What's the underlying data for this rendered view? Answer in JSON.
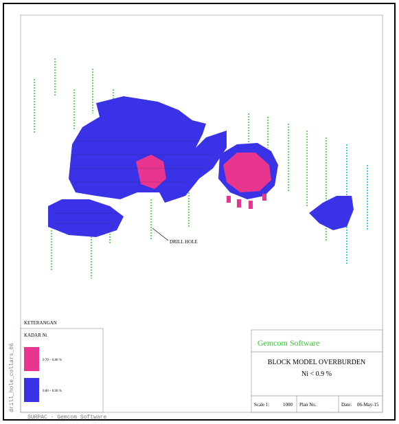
{
  "drawing": {
    "annotation": "DRILL HOLE"
  },
  "legend": {
    "title": "KETERANGAN",
    "subtitle": "KADAR Ni",
    "items": [
      {
        "label": "0.70 – 0.80 %",
        "color": "#e8368f"
      },
      {
        "label": "0.80 – 0.90 %",
        "color": "#3a32e6"
      }
    ]
  },
  "title_block": {
    "company": "Gemcom Software",
    "title": "BLOCK MODEL OVERBURDEN",
    "subtitle": "Ni < 0.9 %",
    "scale_label": "Scale 1:",
    "scale": "1000",
    "plan_label": "Plan No.",
    "date_label": "Date:",
    "date": "06-May-15"
  },
  "side_label": "drill_hole_collars_06",
  "footer": "SURPAC - Gemcom Software"
}
